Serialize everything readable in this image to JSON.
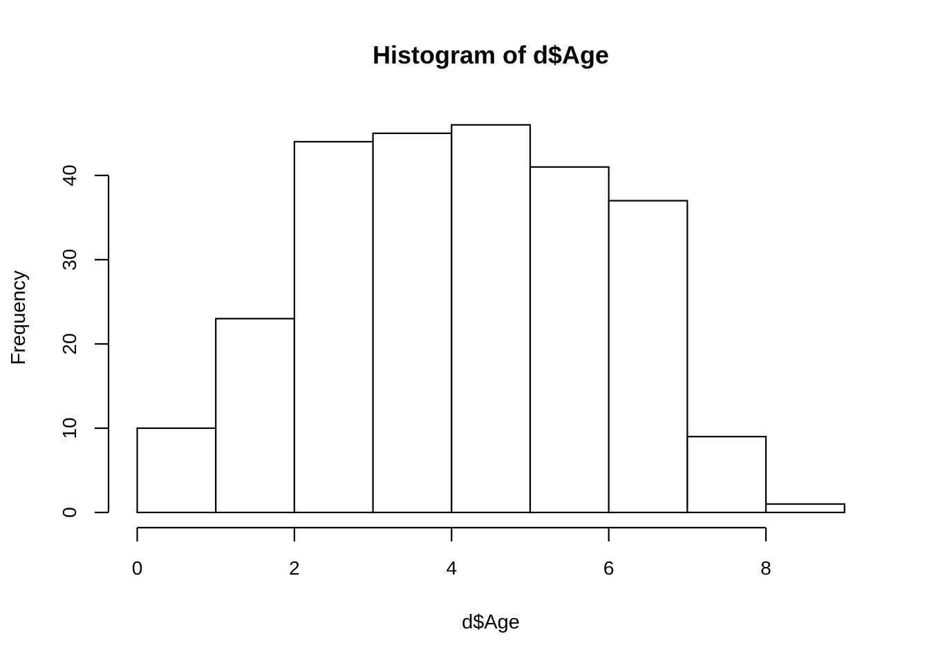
{
  "chart_data": {
    "type": "bar",
    "subtype": "histogram",
    "title": "Histogram of d$Age",
    "xlabel": "d$Age",
    "ylabel": "Frequency",
    "bins": [
      {
        "start": 0,
        "end": 1,
        "count": 10
      },
      {
        "start": 1,
        "end": 2,
        "count": 23
      },
      {
        "start": 2,
        "end": 3,
        "count": 44
      },
      {
        "start": 3,
        "end": 4,
        "count": 45
      },
      {
        "start": 4,
        "end": 5,
        "count": 46
      },
      {
        "start": 5,
        "end": 6,
        "count": 41
      },
      {
        "start": 6,
        "end": 7,
        "count": 37
      },
      {
        "start": 7,
        "end": 8,
        "count": 9
      },
      {
        "start": 8,
        "end": 9,
        "count": 1
      }
    ],
    "xlim": [
      0,
      9
    ],
    "ylim": [
      0,
      46
    ],
    "x_ticks": [
      0,
      2,
      4,
      6,
      8
    ],
    "x_tick_labels": [
      "0",
      "2",
      "4",
      "6",
      "8"
    ],
    "y_ticks": [
      0,
      10,
      20,
      30,
      40
    ],
    "y_tick_labels": [
      "0",
      "10",
      "20",
      "30",
      "40"
    ],
    "grid": false,
    "legend": "none",
    "colors": {
      "bar_fill": "#ffffff",
      "bar_stroke": "#000000",
      "axis": "#000000",
      "text": "#000000",
      "background": "#ffffff"
    }
  }
}
